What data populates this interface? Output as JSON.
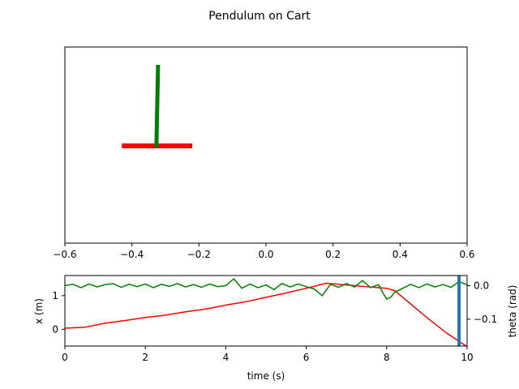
{
  "title": "Pendulum on Cart",
  "chart_data": [
    {
      "type": "animation-frame",
      "xlim": [
        -0.6,
        0.6
      ],
      "xticks": [
        "−0.6",
        "−0.4",
        "−0.2",
        "0.0",
        "0.2",
        "0.4",
        "0.6"
      ],
      "xtick_values": [
        -0.6,
        -0.4,
        -0.2,
        0.0,
        0.2,
        0.4,
        0.6
      ],
      "cart": {
        "color": "#ff0000",
        "x_left": -0.43,
        "x_right": -0.22,
        "y": 0.0
      },
      "pendulum": {
        "color": "#008000",
        "x_base": -0.327,
        "x_tip": -0.322,
        "y_base": 0.0,
        "y_tip": 1.0
      }
    },
    {
      "type": "line",
      "xlabel": "time (s)",
      "ylabel": "x (m)",
      "ylabel_right": "theta (rad)",
      "xlim": [
        0,
        10
      ],
      "xticks": [
        "0",
        "2",
        "4",
        "6",
        "8",
        "10"
      ],
      "xtick_values": [
        0,
        2,
        4,
        6,
        8,
        10
      ],
      "ylim": [
        -0.5,
        1.6
      ],
      "yticks": [
        "0",
        "1"
      ],
      "ytick_values": [
        0,
        1
      ],
      "ylim_right": [
        -0.18,
        0.03
      ],
      "yticks_right": [
        "−0.1",
        "0.0"
      ],
      "ytick_values_right": [
        -0.1,
        0.0
      ],
      "time_marker": {
        "x": 9.8,
        "color": "#1f77b4"
      },
      "series": [
        {
          "axis": "left",
          "color": "#ff0000",
          "x": [
            0,
            0.5,
            1.0,
            1.5,
            2.0,
            2.5,
            3.0,
            3.5,
            4.0,
            4.5,
            5.0,
            5.5,
            6.0,
            6.5,
            7.0,
            7.5,
            8.0,
            8.2,
            8.5,
            9.0,
            9.5,
            10.0
          ],
          "y": [
            0.03,
            0.06,
            0.18,
            0.26,
            0.35,
            0.42,
            0.52,
            0.6,
            0.72,
            0.82,
            0.95,
            1.08,
            1.22,
            1.37,
            1.32,
            1.27,
            1.22,
            1.15,
            0.85,
            0.35,
            -0.12,
            -0.52
          ]
        },
        {
          "axis": "right",
          "color": "#008000",
          "x": [
            0,
            0.2,
            0.4,
            0.6,
            0.8,
            1.0,
            1.2,
            1.4,
            1.6,
            1.8,
            2.0,
            2.2,
            2.4,
            2.6,
            2.8,
            3.0,
            3.2,
            3.4,
            3.6,
            3.8,
            4.0,
            4.2,
            4.4,
            4.6,
            4.8,
            5.0,
            5.2,
            5.4,
            5.6,
            5.8,
            6.0,
            6.2,
            6.4,
            6.6,
            6.8,
            7.0,
            7.2,
            7.4,
            7.6,
            7.8,
            7.9,
            8.0,
            8.1,
            8.2,
            8.4,
            8.6,
            8.8,
            9.0,
            9.2,
            9.4,
            9.6,
            9.8,
            10.0
          ],
          "y": [
            0.0,
            0.004,
            -0.006,
            0.005,
            -0.004,
            0.003,
            0.006,
            -0.005,
            0.004,
            -0.003,
            0.005,
            -0.006,
            0.004,
            -0.002,
            0.006,
            -0.004,
            0.003,
            -0.005,
            0.005,
            -0.003,
            0.0,
            0.02,
            -0.008,
            0.005,
            -0.006,
            0.002,
            -0.012,
            0.006,
            -0.004,
            0.005,
            -0.003,
            -0.01,
            -0.03,
            0.004,
            -0.005,
            0.006,
            -0.004,
            0.015,
            -0.006,
            0.003,
            -0.02,
            -0.04,
            -0.035,
            -0.02,
            -0.008,
            0.004,
            -0.006,
            0.005,
            -0.004,
            0.003,
            -0.005,
            0.012,
            0.002
          ]
        }
      ]
    }
  ]
}
